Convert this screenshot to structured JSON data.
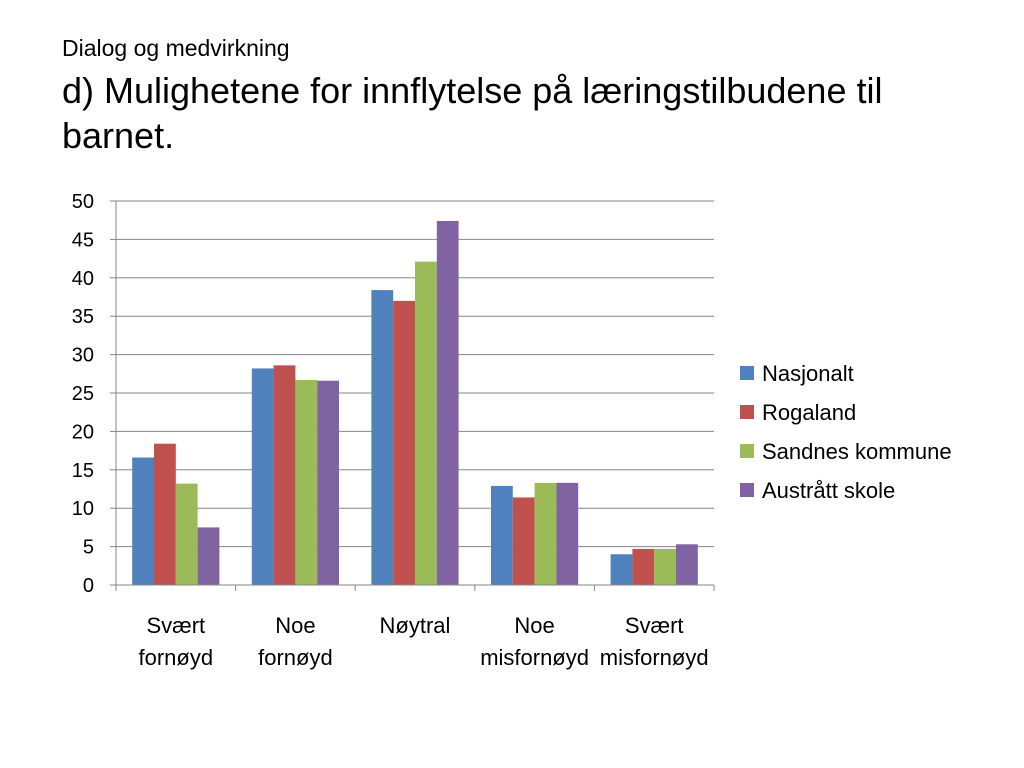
{
  "header": {
    "subtitle": "Dialog og medvirkning",
    "title": "d) Mulighetene for innflytelse på læringstilbudene til barnet."
  },
  "chart_data": {
    "type": "bar",
    "categories": [
      [
        "Svært",
        "fornøyd"
      ],
      [
        "Noe",
        "fornøyd"
      ],
      [
        "Nøytral"
      ],
      [
        "Noe",
        "misfornøyd"
      ],
      [
        "Svært",
        "misfornøyd"
      ]
    ],
    "series": [
      {
        "name": "Nasjonalt",
        "color": "#4F81BD",
        "values": [
          16.6,
          28.2,
          38.4,
          12.9,
          4.0
        ]
      },
      {
        "name": "Rogaland",
        "color": "#C0504D",
        "values": [
          18.4,
          28.6,
          37.0,
          11.4,
          4.7
        ]
      },
      {
        "name": "Sandnes kommune",
        "color": "#9BBB59",
        "values": [
          13.2,
          26.7,
          42.1,
          13.3,
          4.7
        ]
      },
      {
        "name": "Austrått skole",
        "color": "#8064A2",
        "values": [
          7.5,
          26.6,
          47.4,
          13.3,
          5.3
        ]
      }
    ],
    "ylim": [
      0,
      50
    ],
    "yticks": [
      0,
      5,
      10,
      15,
      20,
      25,
      30,
      35,
      40,
      45,
      50
    ],
    "grid": true,
    "legend": "right"
  }
}
